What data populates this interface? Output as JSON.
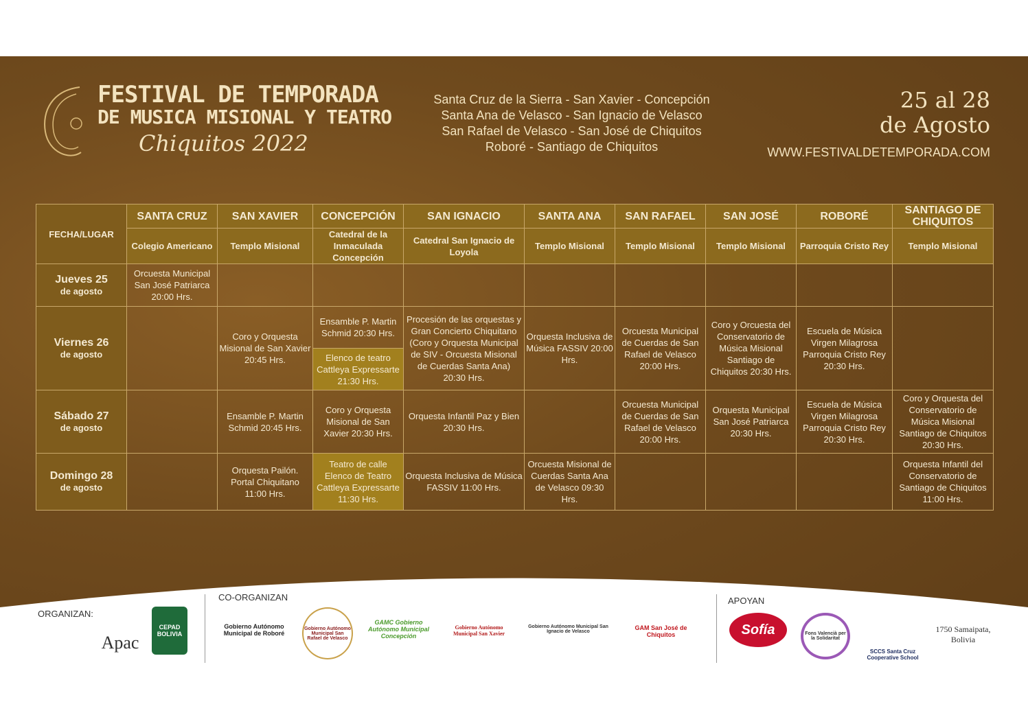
{
  "header": {
    "title_line1": "FESTIVAL DE TEMPORADA",
    "title_line2": "DE MUSICA MISIONAL Y TEATRO",
    "subtitle": "Chiquitos 2022",
    "cities": [
      "Santa Cruz de la Sierra - San Xavier - Concepción",
      "Santa Ana de Velasco - San Ignacio de Velasco",
      "San Rafael de Velasco - San José de Chiquitos",
      "Roboré - Santiago de Chiquitos"
    ],
    "dates_line1": "25 al 28",
    "dates_line2": "de Agosto",
    "url": "WWW.FESTIVALDETEMPORADA.COM"
  },
  "table": {
    "corner": "FECHA/LUGAR",
    "columns": [
      {
        "city": "SANTA CRUZ",
        "venue": "Colegio Americano"
      },
      {
        "city": "SAN XAVIER",
        "venue": "Templo Misional"
      },
      {
        "city": "CONCEPCIÓN",
        "venue": "Catedral de la Inmaculada Concepción"
      },
      {
        "city": "SAN IGNACIO",
        "venue": "Catedral San Ignacio de Loyola"
      },
      {
        "city": "SANTA ANA",
        "venue": "Templo Misional"
      },
      {
        "city": "SAN RAFAEL",
        "venue": "Templo Misional"
      },
      {
        "city": "SAN JOSÉ",
        "venue": "Templo Misional"
      },
      {
        "city": "ROBORÉ",
        "venue": "Parroquia Cristo Rey"
      },
      {
        "city": "SANTIAGO DE CHIQUITOS",
        "venue": "Templo Misional"
      }
    ],
    "rows": [
      {
        "day": "Jueves 25",
        "month": "de agosto",
        "cells": [
          "Orcuesta Municipal San José Patriarca 20:00 Hrs.",
          "",
          "",
          "",
          "",
          "",
          "",
          "",
          ""
        ]
      },
      {
        "day": "Viernes 26",
        "month": "de agosto",
        "cells": [
          "",
          "Coro y Orquesta Misional de San Xavier 20:45 Hrs.",
          [
            "Ensamble P. Martin Schmid 20:30 Hrs.",
            "Elenco de teatro Cattleya Expressarte 21:30 Hrs."
          ],
          "Procesión de las orquestas y Gran Concierto Chiquitano (Coro y Orquesta Municipal de SIV - Orcuesta Misional de Cuerdas Santa Ana) 20:30 Hrs.",
          "Orquesta Inclusiva de Música FASSIV 20:00 Hrs.",
          "Orcuesta Municipal de Cuerdas de San Rafael de Velasco 20:00 Hrs.",
          "Coro y Orcuesta del Conservatorio de Música Misional Santiago de Chiquitos 20:30 Hrs.",
          "Escuela de Música Virgen Milagrosa Parroquia Cristo Rey 20:30 Hrs.",
          ""
        ]
      },
      {
        "day": "Sábado 27",
        "month": "de agosto",
        "cells": [
          "",
          "Ensamble P. Martin Schmid 20:45 Hrs.",
          "Coro y Orquesta Misional de San Xavier 20:30 Hrs.",
          "Orquesta Infantil Paz y Bien 20:30 Hrs.",
          "",
          "Orcuesta Municipal de Cuerdas de San Rafael de Velasco 20:00 Hrs.",
          "Orquesta Municipal San José Patriarca 20:30 Hrs.",
          "Escuela de Música Virgen Milagrosa Parroquia Cristo Rey 20:30 Hrs.",
          "Coro y Orquesta del Conservatorio de Música Misional Santiago de Chiquitos 20:30 Hrs."
        ]
      },
      {
        "day": "Domingo 28",
        "month": "de agosto",
        "cells": [
          "",
          "Orquesta Pailón. Portal Chiquitano 11:00 Hrs.",
          "Teatro de calle Elenco de Teatro Cattleya Expressarte 11:30 Hrs.",
          "Orquesta Inclusiva de Música FASSIV 11:00 Hrs.",
          "Orcuesta Misional de Cuerdas Santa Ana de Velasco 09:30 Hrs.",
          "",
          "",
          "",
          "Orquesta Infantil del Conservatorio de Santiago de Chiquitos 11:00 Hrs."
        ]
      }
    ]
  },
  "footer": {
    "organizan_label": "ORGANIZAN:",
    "coorganizan_label": "CO-ORGANIZAN",
    "apoyan_label": "APOYAN",
    "organizers": [
      "Apac",
      "CEPAD BOLIVIA"
    ],
    "coorganizers": [
      "Gobierno Autónomo Municipal de Roboré",
      "Gobierno Autónomo Municipal San Rafael de Velasco",
      "GAMC Gobierno Autónomo Municipal Concepción",
      "Gobierno Autónomo Municipal San Xavier",
      "Gobierno Autónomo Municipal San Ignacio de Velasco",
      "GAM San José de Chiquitos"
    ],
    "supporters": [
      "Sofía",
      "Fons Valencià per la Solidaritat",
      "SCCS Santa Cruz Cooperative School",
      "1750 Samaipata, Bolivia"
    ]
  },
  "colors": {
    "background": "#6f4a1d",
    "header_gold": "#8c6a1e",
    "highlight": "#a2801e",
    "text": "#f5ead2"
  }
}
